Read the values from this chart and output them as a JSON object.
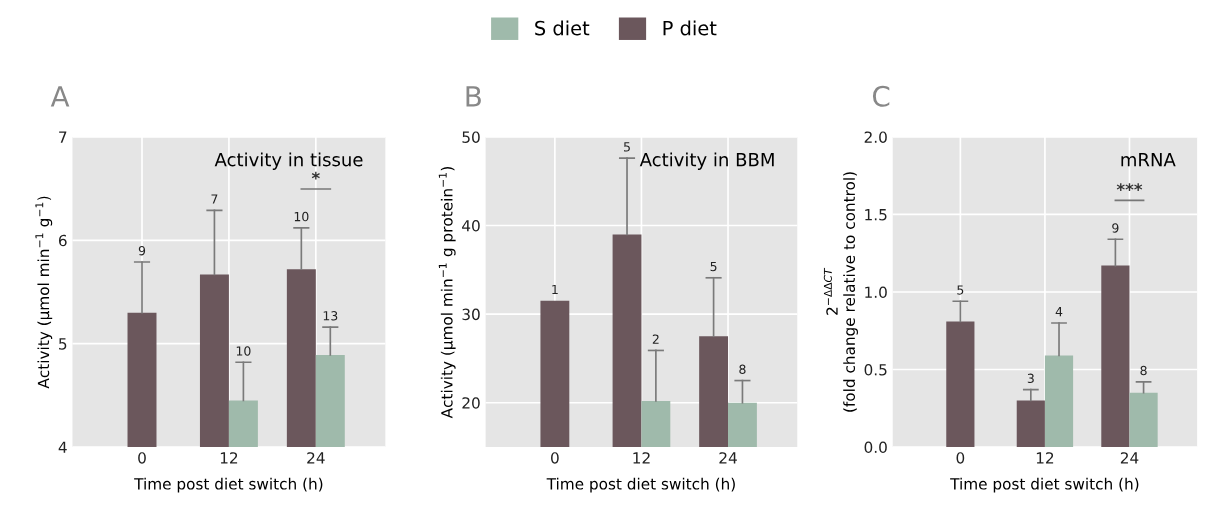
{
  "chart_data": [
    {
      "type": "bar",
      "title": "A",
      "subtitle": "Activity in tissue",
      "xlabel": "Time post diet switch (h)",
      "ylabel": "Activity (μmol min$^{−1}$ g$^{−1}$)",
      "categories": [
        "0",
        "12",
        "24"
      ],
      "ylim": [
        4,
        7
      ],
      "yticks": [
        4,
        5,
        6,
        7
      ],
      "grid": true,
      "legend": "top",
      "series": [
        {
          "name": "P diet",
          "color": "#6b575c",
          "values": [
            5.3,
            5.67,
            5.72
          ],
          "errors": [
            [
              5.3,
              5.79
            ],
            [
              5.67,
              6.29
            ],
            [
              5.72,
              6.12
            ]
          ]
        },
        {
          "name": "S diet",
          "color": "#9fbaab",
          "values": [
            null,
            4.45,
            4.89
          ],
          "errors": [
            null,
            [
              4.45,
              4.82
            ],
            [
              4.89,
              5.16
            ]
          ]
        }
      ],
      "annotations": [
        "9",
        "7",
        "10",
        "10",
        "13",
        "*"
      ]
    },
    {
      "type": "bar",
      "title": "B",
      "subtitle": "Activity in BBM",
      "xlabel": "Time post diet switch (h)",
      "ylabel": "Activity (μmol min$^{−1}$ g protein$^{−1}$)",
      "categories": [
        "0",
        "12",
        "24"
      ],
      "ylim": [
        15,
        50
      ],
      "yticks": [
        20,
        30,
        40,
        50
      ],
      "grid": true,
      "series": [
        {
          "color": "#6b575c",
          "values": [
            31.5,
            39.0,
            27.5
          ],
          "errors": [
            null,
            [
              39.0,
              47.6
            ],
            [
              27.5,
              34.1
            ]
          ]
        },
        {
          "color": "#9fbaab",
          "values": [
            null,
            20.2,
            20.0
          ],
          "errors": [
            null,
            [
              20.2,
              25.9
            ],
            [
              20.0,
              22.5
            ]
          ]
        }
      ],
      "annotations": [
        "1",
        "5",
        "2",
        "5",
        "8"
      ]
    },
    {
      "type": "bar",
      "title": "C",
      "subtitle": "mRNA",
      "xlabel": "Time post diet switch (h)",
      "ylabel": "2$^{−ΔΔCT}$\n(fold change relative to control)",
      "categories": [
        "0",
        "12",
        "24"
      ],
      "ylim": [
        0,
        2
      ],
      "yticks": [
        {
          "value": 0,
          "label": "0.0"
        },
        0.5,
        {
          "value": 1,
          "label": "1.0"
        },
        1.5,
        {
          "value": 2,
          "label": "2.0"
        }
      ],
      "grid": true,
      "series": [
        {
          "color": "#6b575c",
          "values": [
            0.81,
            0.3,
            1.17
          ],
          "errors": [
            [
              0.81,
              0.94
            ],
            [
              0.3,
              0.37
            ],
            [
              1.17,
              1.34
            ]
          ]
        },
        {
          "color": "#9fbaab",
          "values": [
            null,
            0.59,
            0.35
          ],
          "errors": [
            null,
            [
              0.59,
              0.8
            ],
            [
              0.35,
              0.42
            ]
          ]
        }
      ],
      "annotations": [
        "5",
        "3",
        "4",
        "9",
        "8",
        "***"
      ]
    }
  ]
}
